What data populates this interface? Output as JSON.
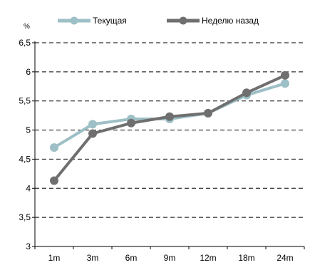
{
  "chart_data": {
    "type": "line",
    "title": "",
    "xlabel": "",
    "ylabel": "%",
    "categories": [
      "1m",
      "3m",
      "6m",
      "9m",
      "12m",
      "18m",
      "24m"
    ],
    "ylim": [
      3,
      6.5
    ],
    "yticks": [
      "3",
      "3,5",
      "4",
      "4,5",
      "5",
      "5,5",
      "6",
      "6,5"
    ],
    "grid": "horizontal-dashed",
    "legend_position": "top",
    "series": [
      {
        "name": "Текущая",
        "color": "#9dbfc6",
        "values": [
          4.7,
          5.1,
          5.19,
          5.19,
          5.29,
          5.6,
          5.8
        ]
      },
      {
        "name": "Неделю назад",
        "color": "#6f6f6f",
        "values": [
          4.13,
          4.94,
          5.12,
          5.23,
          5.29,
          5.64,
          5.94
        ]
      }
    ]
  }
}
